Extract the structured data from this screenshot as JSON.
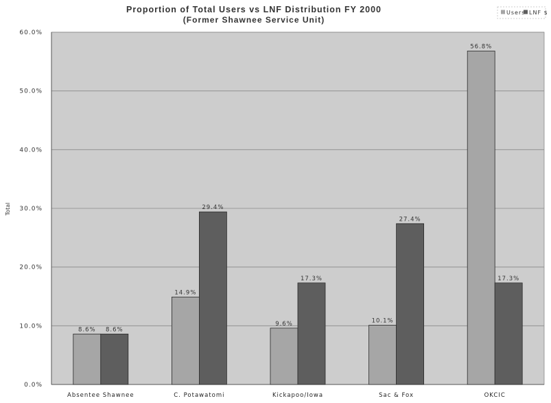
{
  "chart_data": {
    "type": "bar",
    "title_lines": [
      "Proportion of Total Users vs LNF Distribution FY 2000",
      "(Former Shawnee Service Unit)"
    ],
    "xlabel": "",
    "ylabel": "Total",
    "ylim": [
      0,
      60
    ],
    "y_ticks": [
      "0.0%",
      "10.0%",
      "20.0%",
      "30.0%",
      "40.0%",
      "50.0%",
      "60.0%"
    ],
    "categories": [
      "Absentee Shawnee",
      "C. Potawatomi",
      "Kickapoo/Iowa",
      "Sac & Fox",
      "OKCIC"
    ],
    "series": [
      {
        "name": "Users",
        "color": "#a6a6a6",
        "values": [
          8.6,
          14.9,
          9.6,
          10.1,
          56.8
        ],
        "labels": [
          "8.6%",
          "14.9%",
          "9.6%",
          "10.1%",
          "56.8%"
        ]
      },
      {
        "name": "LNF $",
        "color": "#5e5e5e",
        "values": [
          8.6,
          29.4,
          17.3,
          27.4,
          17.3
        ],
        "labels": [
          "8.6%",
          "29.4%",
          "17.3%",
          "27.4%",
          "17.3%"
        ]
      }
    ],
    "grid": true,
    "legend_position": "top-right",
    "plot_background": "#cdcdcd",
    "grid_color": "#8a8a8a"
  }
}
